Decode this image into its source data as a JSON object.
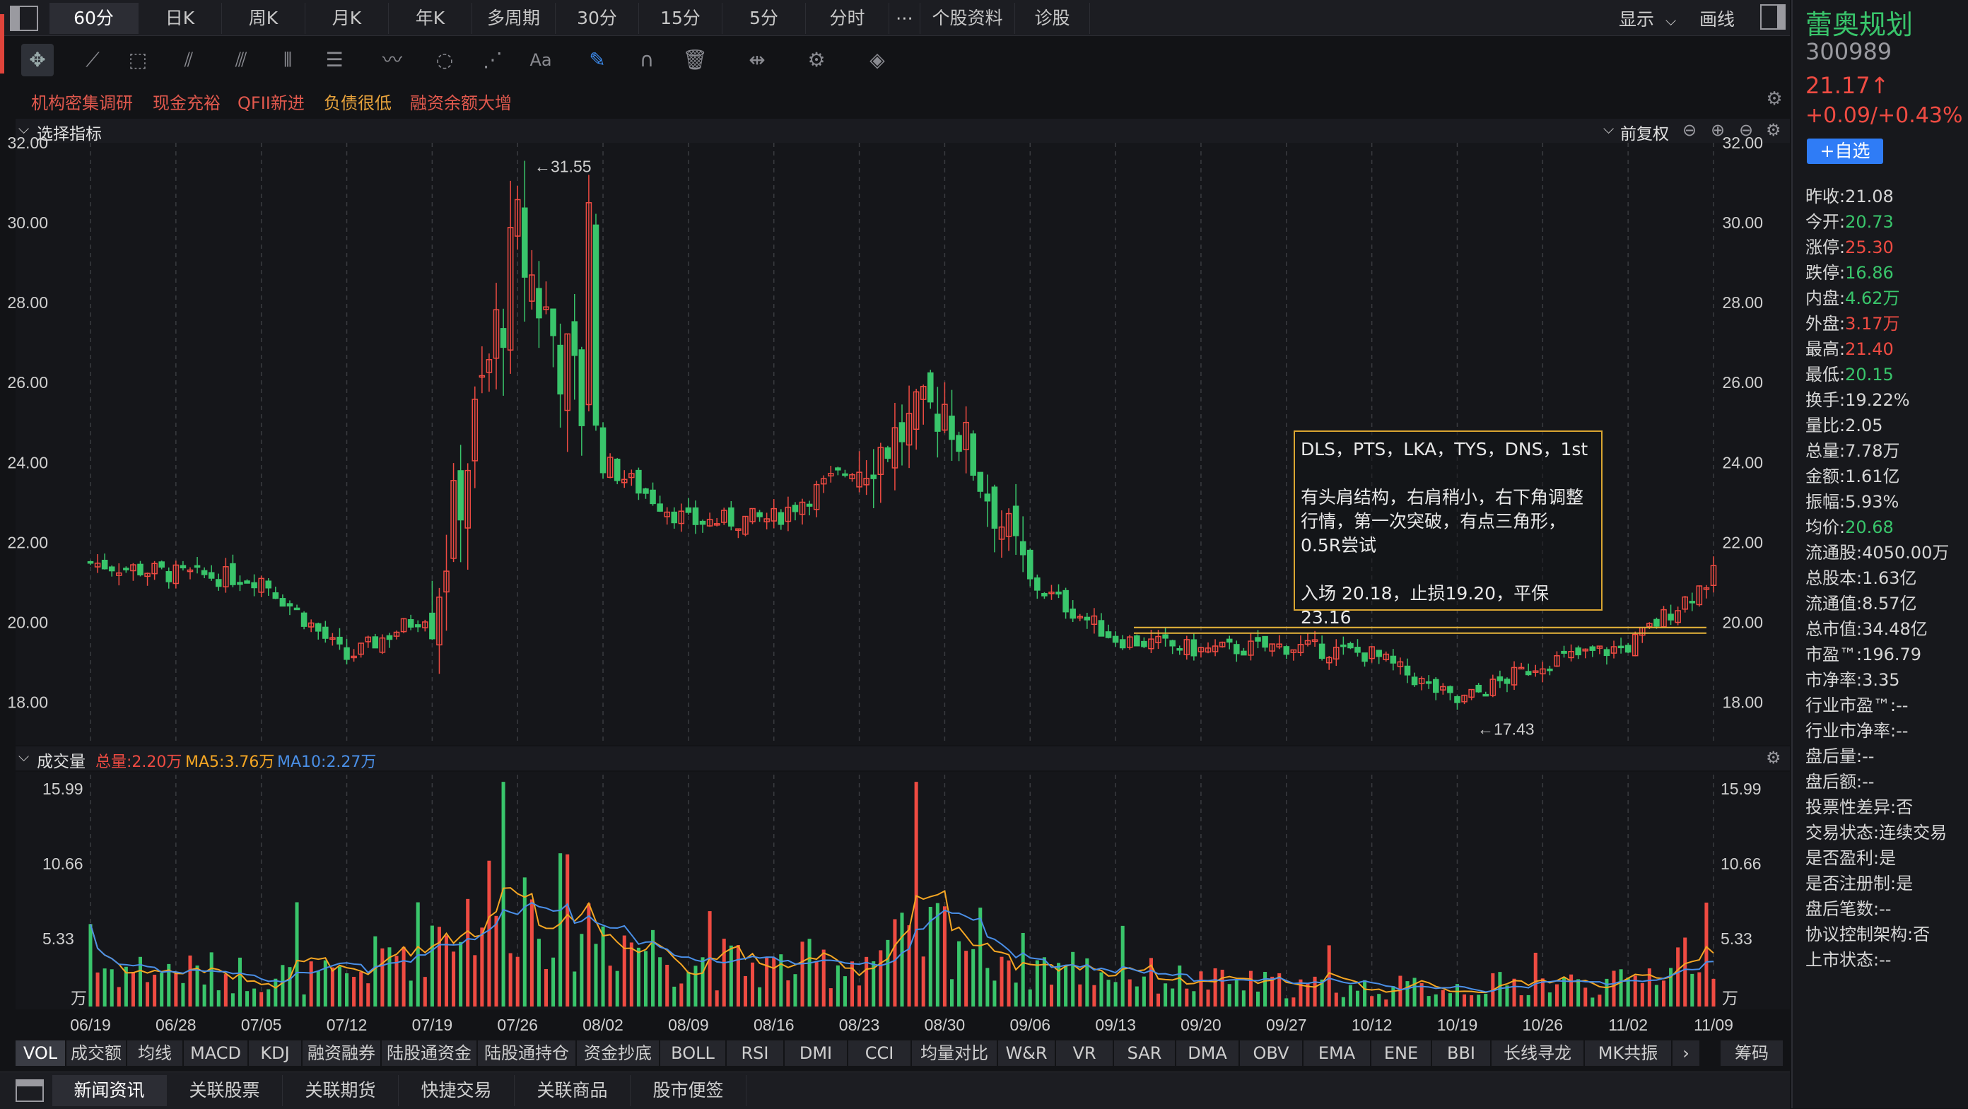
{
  "period_tabs": [
    "60分",
    "日K",
    "周K",
    "月K",
    "年K",
    "多周期",
    "30分",
    "15分",
    "5分",
    "分时",
    "⋯",
    "个股资料",
    "诊股"
  ],
  "active_period": "60分",
  "top_right": {
    "display_label": "显示",
    "draw_label": "画线"
  },
  "tags": [
    "机构密集调研",
    "现金充裕",
    "QFII新进",
    "负债很低",
    "融资余额大增"
  ],
  "main_panel": {
    "indicator_label": "选择指标",
    "adjust_label": "前复权"
  },
  "volume_panel": {
    "title": "成交量",
    "total": "总量:2.20万",
    "ma5": "MA5:3.76万",
    "ma10": "MA10:2.27万",
    "unit": "万"
  },
  "annotation": {
    "line1": "DLS，PTS，LKA，TYS，DNS，1st",
    "line2": "有头肩结构，右肩稍小，右下角调整",
    "line3": "行情，第一次突破，有点三角形，",
    "line4": "0.5R尝试",
    "line5": "入场 20.18，止损19.20，平保 23.16"
  },
  "price_marks": {
    "high": "←31.55",
    "low": "←17.43"
  },
  "indicator_tabs": [
    "VOL",
    "成交额",
    "均线",
    "MACD",
    "KDJ",
    "融资融券",
    "陆股通资金",
    "陆股通持仓",
    "资金抄底",
    "BOLL",
    "RSI",
    "DMI",
    "CCI",
    "均量对比",
    "W&R",
    "VR",
    "SAR",
    "DMA",
    "OBV",
    "EMA",
    "ENE",
    "BBI",
    "长线寻龙",
    "MK共振"
  ],
  "indicator_more": "›",
  "chips_label": "筹码",
  "bottom_tabs": [
    "新闻资讯",
    "关联股票",
    "关联期货",
    "快捷交易",
    "关联商品",
    "股市便签"
  ],
  "stock": {
    "name": "蕾奥规划",
    "code": "300989",
    "price": "21.17↑",
    "change": "+0.09/+0.43%",
    "watch_label": "+自选"
  },
  "quote": [
    {
      "label": "昨收:",
      "value": "21.08",
      "color": "normal"
    },
    {
      "label": "今开:",
      "value": "20.73",
      "color": "dn"
    },
    {
      "label": "涨停:",
      "value": "25.30",
      "color": "up"
    },
    {
      "label": "跌停:",
      "value": "16.86",
      "color": "dn"
    },
    {
      "label": "内盘:",
      "value": "4.62万",
      "color": "dn"
    },
    {
      "label": "外盘:",
      "value": "3.17万",
      "color": "up"
    },
    {
      "label": "最高:",
      "value": "21.40",
      "color": "up"
    },
    {
      "label": "最低:",
      "value": "20.15",
      "color": "dn"
    },
    {
      "label": "换手:",
      "value": "19.22%",
      "color": "normal"
    },
    {
      "label": "量比:",
      "value": "2.05",
      "color": "normal"
    },
    {
      "label": "总量:",
      "value": "7.78万",
      "color": "normal"
    },
    {
      "label": "金额:",
      "value": "1.61亿",
      "color": "normal"
    },
    {
      "label": "振幅:",
      "value": "5.93%",
      "color": "normal"
    },
    {
      "label": "均价:",
      "value": "20.68",
      "color": "dn"
    },
    {
      "label": "流通股:",
      "value": "4050.00万",
      "color": "normal"
    },
    {
      "label": "总股本:",
      "value": "1.63亿",
      "color": "normal"
    },
    {
      "label": "流通值:",
      "value": "8.57亿",
      "color": "normal"
    },
    {
      "label": "总市值:",
      "value": "34.48亿",
      "color": "normal"
    },
    {
      "label": "市盈™:",
      "value": "196.79",
      "color": "normal"
    },
    {
      "label": "市净率:",
      "value": "3.35",
      "color": "normal"
    },
    {
      "label": "行业市盈™:",
      "value": "--",
      "color": "normal"
    },
    {
      "label": "行业市净率:",
      "value": "--",
      "color": "normal"
    },
    {
      "label": "盘后量:",
      "value": "--",
      "color": "normal"
    },
    {
      "label": "盘后额:",
      "value": "--",
      "color": "normal"
    },
    {
      "label": "投票性差异:",
      "value": "否",
      "color": "normal"
    },
    {
      "label": "交易状态:",
      "value": "连续交易",
      "color": "normal"
    },
    {
      "label": "是否盈利:",
      "value": "是",
      "color": "normal"
    },
    {
      "label": "是否注册制:",
      "value": "是",
      "color": "normal"
    },
    {
      "label": "盘后笔数:",
      "value": "--",
      "color": "normal"
    },
    {
      "label": "协议控制架构:",
      "value": "否",
      "color": "normal"
    },
    {
      "label": "上市状态:",
      "value": "--",
      "color": "normal"
    }
  ],
  "chart_data": [
    {
      "type": "candlestick",
      "x": [
        "06/19",
        "06/28",
        "07/05",
        "07/12",
        "07/19",
        "07/26",
        "08/02",
        "08/09",
        "08/16",
        "08/23",
        "08/30",
        "09/06",
        "09/13",
        "09/20",
        "09/27",
        "10/12",
        "10/19",
        "10/26",
        "11/02",
        "11/09"
      ],
      "close_approx": [
        21.5,
        21.2,
        21.1,
        19.1,
        20.3,
        29.5,
        24.0,
        22.5,
        22.6,
        24.0,
        25.5,
        21.0,
        19.6,
        19.3,
        19.4,
        19.2,
        18.0,
        19.0,
        19.4,
        21.17
      ],
      "yticks": [
        "32.00",
        "30.00",
        "28.00",
        "26.00",
        "24.00",
        "22.00",
        "20.00",
        "18.00"
      ],
      "ylim": [
        17.0,
        32.0
      ],
      "high_mark": 31.55,
      "low_mark": 17.43,
      "level_line": 19.8
    },
    {
      "type": "bar",
      "title": "成交量",
      "x": [
        "06/19",
        "06/28",
        "07/05",
        "07/12",
        "07/19",
        "07/26",
        "08/02",
        "08/09",
        "08/16",
        "08/23",
        "08/30",
        "09/06",
        "09/13",
        "09/20",
        "09/27",
        "10/12",
        "10/19",
        "10/26",
        "11/02",
        "11/09"
      ],
      "volume_approx": [
        2.5,
        2.3,
        2.1,
        1.8,
        5.0,
        7.5,
        5.0,
        3.0,
        2.5,
        3.0,
        5.0,
        2.8,
        2.2,
        1.6,
        1.4,
        1.2,
        1.3,
        1.5,
        1.5,
        4.5
      ],
      "yticks": [
        "15.99",
        "10.66",
        "5.33"
      ],
      "ylim": [
        0,
        16.5
      ],
      "unit": "万"
    }
  ],
  "colors": {
    "up": "#ef4b42",
    "down": "#39c56b",
    "ma5": "#f5a623",
    "ma10": "#4a8fe7",
    "level_line": "#e8b53a"
  }
}
